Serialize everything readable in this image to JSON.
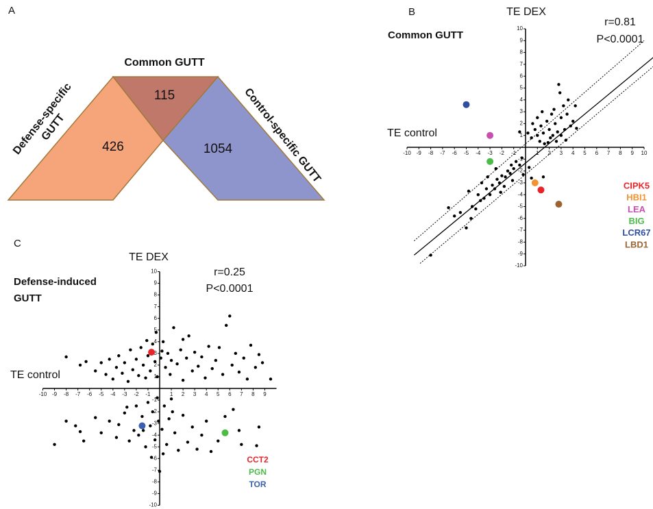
{
  "panel_a": {
    "panel_label": "A",
    "title": "Common GUTT",
    "left_label": [
      "Defense-specific",
      "GUTT"
    ],
    "right_label": "Control-specific GUTT",
    "regions": [
      {
        "name": "defense",
        "count": 426,
        "color": "#f6a47a"
      },
      {
        "name": "common",
        "count": 115,
        "color": "#c0786a"
      },
      {
        "name": "control",
        "count": 1054,
        "color": "#8e95cc"
      }
    ]
  },
  "chart_data": [
    {
      "type": "scatter",
      "panel_label": "B",
      "title": [
        "Common GUTT"
      ],
      "x_label": "TE control",
      "y_label": "TE DEX",
      "annotations": [
        "r=0.81",
        "P<0.0001"
      ],
      "xlim": [
        -10,
        10
      ],
      "ylim": [
        -10,
        10
      ],
      "xticks": [
        -10,
        -9,
        -8,
        -7,
        -6,
        -5,
        -4,
        -3,
        -2,
        -1,
        1,
        2,
        3,
        4,
        5,
        6,
        7,
        8,
        9,
        10
      ],
      "yticks": [
        -10,
        -9,
        -8,
        -7,
        -6,
        -5,
        -4,
        -3,
        -2,
        -1,
        1,
        2,
        3,
        4,
        5,
        6,
        7,
        8,
        9,
        10
      ],
      "lines": [
        {
          "style": "solid",
          "x": [
            -9.4,
            10.8
          ],
          "y": [
            -9.1,
            7.6
          ]
        },
        {
          "style": "dotted",
          "x": [
            -9.4,
            10
          ],
          "y": [
            -7.9,
            9.0
          ]
        },
        {
          "style": "dotted",
          "x": [
            -8.9,
            10.75
          ],
          "y": [
            -9.8,
            6.8
          ]
        }
      ],
      "series": [
        {
          "color": "#000000",
          "x": [
            0.2,
            0.5,
            0.8,
            1,
            1.2,
            1.3,
            1.5,
            1.6,
            1.8,
            2,
            2.1,
            2.2,
            2.3,
            2.5,
            2.6,
            2.7,
            2.8,
            3,
            3,
            3.2,
            3.4,
            3.5,
            3.6,
            3.8,
            4,
            4.2,
            1.0,
            2.4,
            -0.5,
            0.6,
            1.9,
            3.3,
            2.9,
            1.4,
            4.3,
            -0.5,
            -0.8,
            -1,
            -1.2,
            -1.3,
            -1.5,
            -1.7,
            -2,
            -2.2,
            -2.4,
            -2.6,
            -2.8,
            -3,
            -3.3,
            -3.5,
            -3.8,
            -4,
            -4.2,
            -4.5,
            -5,
            -5.5,
            -6.5,
            -8,
            -0.3,
            -1.8,
            -2.5,
            -3.2,
            -0.2,
            0.3,
            0.5,
            -4.8,
            -3.7,
            -1.1,
            -2.1,
            1.5,
            -6,
            -4.6
          ],
          "y": [
            1.2,
            0.8,
            1.5,
            1.0,
            0.5,
            1.8,
            1.2,
            0.3,
            2.2,
            1.5,
            0.8,
            2.8,
            1.0,
            2.0,
            0.5,
            1.3,
            5.3,
            1.0,
            2.5,
            3.5,
            0.6,
            2.8,
            4.0,
            1.8,
            2.2,
            3.5,
            2.5,
            3.2,
            1.3,
            2.0,
            0.4,
            1.5,
            4.6,
            3.0,
            1.6,
            -1.5,
            -1.2,
            -1.8,
            -1.5,
            -2.2,
            -2.0,
            -2.5,
            -2.4,
            -3.0,
            -2.7,
            -3.5,
            -3.2,
            -4.0,
            -3.5,
            -4.3,
            -4.5,
            -4.0,
            -5.2,
            -5.0,
            -6.8,
            -5.5,
            -5.1,
            -9.1,
            -0.9,
            -3.3,
            -1.8,
            -2.5,
            -2.3,
            -1.7,
            -2.6,
            -3.7,
            -3.0,
            -2.8,
            -3.8,
            -2.5,
            -5.8,
            -6.0
          ]
        },
        {
          "name": "CIPK5",
          "color": "#e8242a",
          "x": [
            1.3
          ],
          "y": [
            -3.6
          ]
        },
        {
          "name": "HBI1",
          "color": "#f39230",
          "x": [
            0.8
          ],
          "y": [
            -3.0
          ]
        },
        {
          "name": "LEA",
          "color": "#c84fb0",
          "x": [
            -3
          ],
          "y": [
            1
          ]
        },
        {
          "name": "BIG",
          "color": "#4dbb48",
          "x": [
            -3
          ],
          "y": [
            -1.2
          ]
        },
        {
          "name": "LCR67",
          "color": "#2f4ea0",
          "x": [
            -5
          ],
          "y": [
            3.6
          ]
        },
        {
          "name": "LBD1",
          "color": "#9a6331",
          "x": [
            2.8
          ],
          "y": [
            -4.8
          ]
        }
      ]
    },
    {
      "type": "scatter",
      "panel_label": "C",
      "title": [
        "Defense-induced",
        "GUTT"
      ],
      "x_label": "TE control",
      "y_label": "TE DEX",
      "annotations": [
        "r=0.25",
        "P<0.0001"
      ],
      "xlim": [
        -10,
        10
      ],
      "ylim": [
        -10,
        10
      ],
      "xticks": [
        -10,
        -9,
        -8,
        -7,
        -6,
        -5,
        -4,
        -3,
        -2,
        -1,
        1,
        2,
        3,
        4,
        5,
        6,
        7,
        8,
        9
      ],
      "yticks": [
        -10,
        -9,
        -8,
        -7,
        -6,
        -5,
        -4,
        -3,
        -2,
        -1,
        1,
        2,
        3,
        4,
        5,
        6,
        7,
        8,
        9,
        10
      ],
      "lines": [],
      "series": [
        {
          "color": "#000000",
          "x": [
            -8,
            -6.8,
            -6.3,
            -5.5,
            -5,
            -4.6,
            -4.3,
            -4,
            -3.7,
            -3.5,
            -3.2,
            -3,
            -2.7,
            -2.5,
            -2.3,
            -2,
            -1.8,
            -1.6,
            -1.4,
            -1.2,
            -1,
            -0.8,
            -0.6,
            -0.4,
            -0.2,
            0.1,
            0.3,
            0.5,
            0.7,
            0.9,
            1.2,
            1.5,
            1.8,
            2,
            2.3,
            2.5,
            2.8,
            3,
            3.3,
            3.6,
            3.9,
            4.2,
            4.5,
            4.8,
            5.1,
            5.4,
            5.7,
            6,
            6.2,
            6.5,
            6.8,
            7.2,
            7.5,
            7.8,
            8.2,
            8.5,
            8.8,
            9.5,
            2,
            -0.3,
            0.2,
            1,
            -1.1,
            -9,
            -8,
            -7.2,
            -6.8,
            -6.5,
            -5.5,
            -5,
            -4.3,
            -3.7,
            -3.5,
            -3,
            -2.6,
            -2.2,
            -2,
            -1.8,
            -1.5,
            -1.2,
            -1,
            -0.8,
            -0.6,
            -0.4,
            -0.2,
            0,
            0.2,
            0.4,
            0.6,
            0.8,
            1,
            1.3,
            1.6,
            2,
            2.4,
            2.8,
            3.2,
            3.6,
            4,
            4.4,
            5,
            5.6,
            6.3,
            6.8,
            7,
            8.3,
            -0.1,
            0.3,
            -0.7,
            1.1,
            -1.4,
            -2.8,
            8.5
          ],
          "y": [
            2.7,
            2,
            2.3,
            1.5,
            2.2,
            1.2,
            2.5,
            0.8,
            1.8,
            2.8,
            1.3,
            2.2,
            0.6,
            3.3,
            1.6,
            2.5,
            1.1,
            3.5,
            2.0,
            0.9,
            2.8,
            1.5,
            3.8,
            2.3,
            1.0,
            2.6,
            4.0,
            1.8,
            3.0,
            1.2,
            5.2,
            2.1,
            3.3,
            0.7,
            2.6,
            4.5,
            1.5,
            3.1,
            1.9,
            2.7,
            0.9,
            3.6,
            1.7,
            2.4,
            3.5,
            1.2,
            5.4,
            6.2,
            2.0,
            3.0,
            1.4,
            2.6,
            0.8,
            3.7,
            1.8,
            2.9,
            2.2,
            0.8,
            4.2,
            4.8,
            3.2,
            2.4,
            4.1,
            -4.8,
            -2.8,
            -3.2,
            -3.7,
            -4.5,
            -2.5,
            -3.8,
            -2.8,
            -4.2,
            -3.1,
            -2.1,
            -4.5,
            -3.6,
            -1.5,
            -4.0,
            -2.4,
            -5,
            -1.2,
            -3.2,
            -2.0,
            -4.4,
            -0.8,
            -7.1,
            -3.5,
            -1.5,
            -4.8,
            -2.6,
            -0.9,
            -3.8,
            -5.3,
            -2.3,
            -4.6,
            -3.3,
            -5.2,
            -4.0,
            -2.8,
            -5.4,
            -4.5,
            -2.4,
            -1.8,
            -3.6,
            -4.8,
            -4.9,
            -2.8,
            -5.6,
            -5.9,
            -2.0,
            -3.6,
            -1.6,
            -3.3
          ]
        },
        {
          "name": "CCT2",
          "color": "#e8242a",
          "x": [
            -0.7
          ],
          "y": [
            3.1
          ]
        },
        {
          "name": "PGN",
          "color": "#4dbb48",
          "x": [
            5.6
          ],
          "y": [
            -3.8
          ]
        },
        {
          "name": "TOR",
          "color": "#3a5fb0",
          "x": [
            -1.5
          ],
          "y": [
            -3.2
          ]
        }
      ]
    }
  ]
}
